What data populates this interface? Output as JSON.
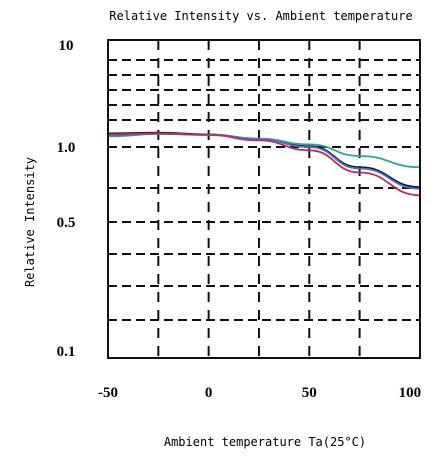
{
  "chart_data": {
    "type": "line",
    "title": "Relative Intensity vs. Ambient temperature",
    "xlabel": "Ambient temperature Ta(25°C)",
    "ylabel": "Relative Intensity",
    "xlim": [
      -50,
      105
    ],
    "x_ticks": [
      -50,
      0,
      50,
      100
    ],
    "x_tick_labels": [
      "-50",
      "0",
      "50",
      "100"
    ],
    "y_tick_labels": [
      {
        "label": "10",
        "value": 10
      },
      {
        "label": "1.0",
        "value": 1.0
      },
      {
        "label": "0.5",
        "value": 0.5
      },
      {
        "label": "0.1",
        "value": 0.1
      }
    ],
    "grid": true,
    "series": [
      {
        "color": "#1a1a1a",
        "x": [
          -50,
          -25,
          0,
          25,
          50,
          75,
          105
        ],
        "y": [
          1.36,
          1.38,
          1.33,
          1.2,
          1.02,
          0.83,
          0.69
        ]
      },
      {
        "color": "#2aa88a",
        "x": [
          -50,
          -25,
          0,
          25,
          50,
          75,
          105
        ],
        "y": [
          1.27,
          1.34,
          1.32,
          1.21,
          1.06,
          0.92,
          0.83
        ]
      },
      {
        "color": "#4a6fd6",
        "x": [
          -50,
          -25,
          0,
          25,
          50,
          75,
          105
        ],
        "y": [
          1.3,
          1.35,
          1.32,
          1.19,
          1.0,
          0.82,
          0.68
        ]
      },
      {
        "color": "#c02a5a",
        "x": [
          -50,
          -25,
          0,
          25,
          50,
          75,
          105
        ],
        "y": [
          1.33,
          1.36,
          1.31,
          1.16,
          0.97,
          0.79,
          0.64
        ]
      }
    ]
  }
}
